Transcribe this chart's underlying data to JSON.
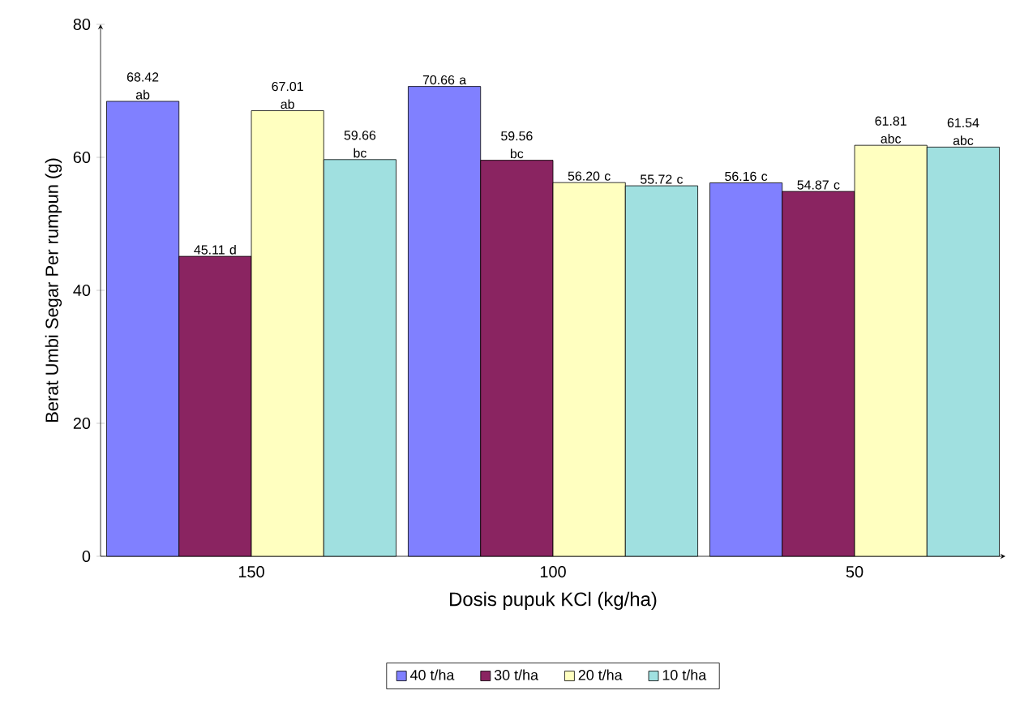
{
  "chart_data": {
    "type": "bar",
    "xlabel": "Dosis pupuk KCl (kg/ha)",
    "ylabel": "Berat Umbi Segar Per rumpun (g)",
    "categories": [
      "150",
      "100",
      "50"
    ],
    "series": [
      {
        "name": "40 t/ha",
        "color": "#8080ff",
        "values": [
          68.42,
          70.66,
          56.16
        ],
        "value_labels": [
          "68.42 ab",
          "70.66 a",
          "56.16 c"
        ]
      },
      {
        "name": "30 t/ha",
        "color": "#8a2461",
        "values": [
          45.11,
          59.56,
          54.87
        ],
        "value_labels": [
          "45.11 d",
          "59.56 bc",
          "54.87 c"
        ]
      },
      {
        "name": "20 t/ha",
        "color": "#ffffc0",
        "values": [
          67.01,
          56.2,
          61.81
        ],
        "value_labels": [
          "67.01 ab",
          "56.20 c",
          "61.81 abc"
        ]
      },
      {
        "name": "10 t/ha",
        "color": "#a0e0e0",
        "values": [
          59.66,
          55.72,
          61.54
        ],
        "value_labels": [
          "59.66 bc",
          "55.72 c",
          "61.54 abc"
        ]
      }
    ],
    "ylim": [
      0,
      80
    ],
    "yticks": [
      0,
      20,
      40,
      60,
      80
    ],
    "grid": false,
    "legend": "bottom"
  }
}
